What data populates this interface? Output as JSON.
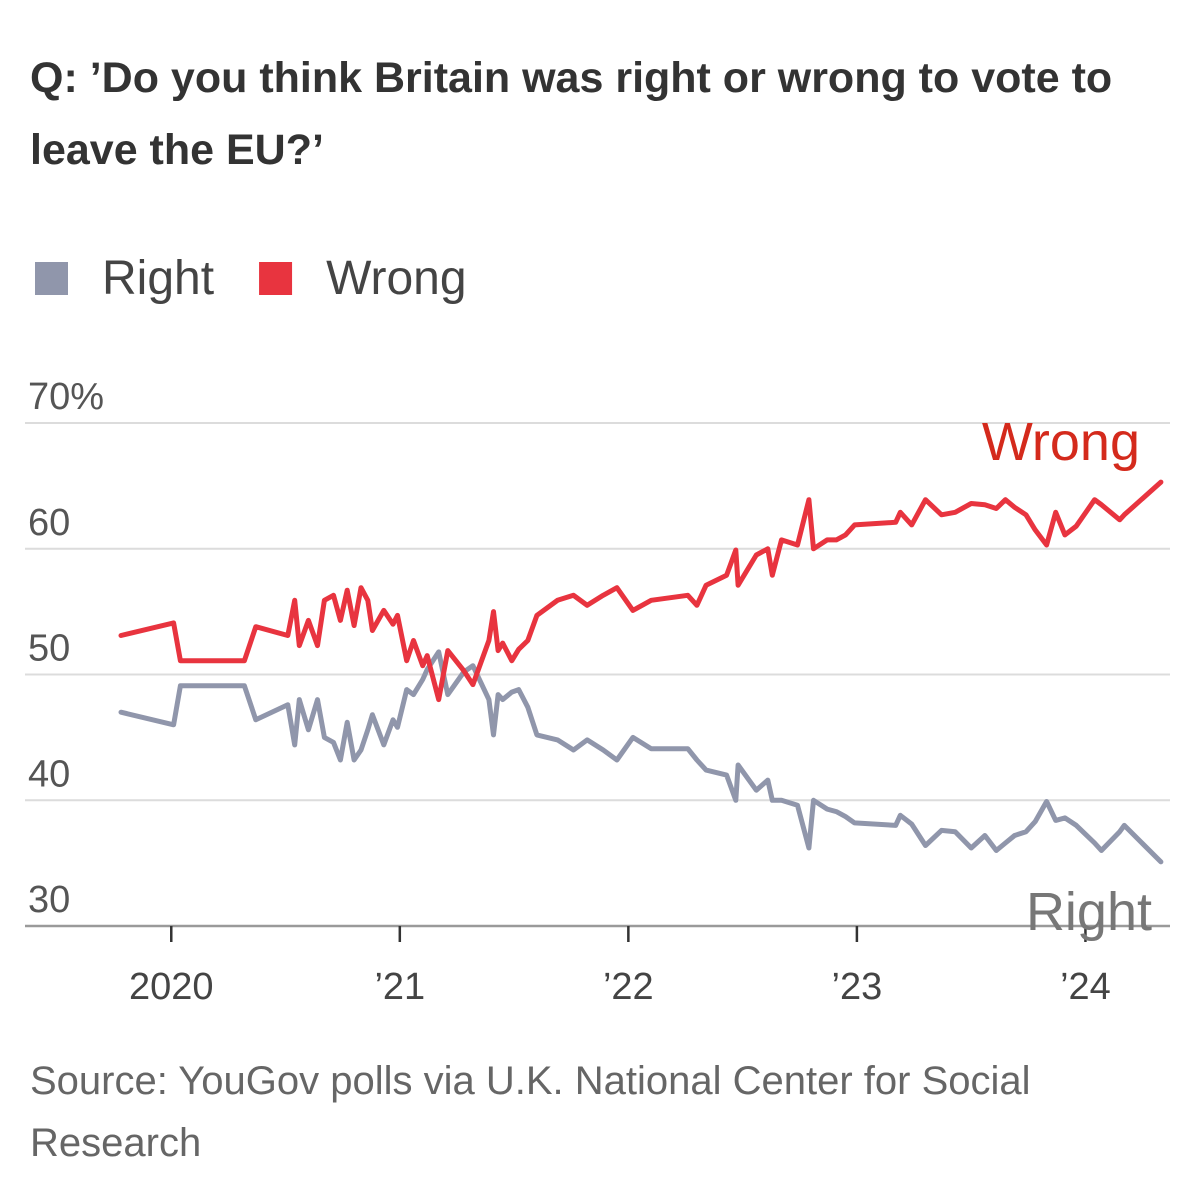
{
  "chart_data": {
    "type": "line",
    "title": "Q: ’Do you think Britain was right or wrong to vote to leave the EU?’",
    "source": "Source: YouGov polls via U.K. National Center for Social Research",
    "x": [
      2019.78,
      2020.01,
      2020.04,
      2020.32,
      2020.37,
      2020.51,
      2020.54,
      2020.56,
      2020.6,
      2020.64,
      2020.67,
      2020.71,
      2020.74,
      2020.77,
      2020.8,
      2020.83,
      2020.86,
      2020.88,
      2020.93,
      2020.97,
      2020.99,
      2021.03,
      2021.06,
      2021.1,
      2021.12,
      2021.17,
      2021.21,
      2021.28,
      2021.32,
      2021.39,
      2021.41,
      2021.43,
      2021.45,
      2021.49,
      2021.52,
      2021.56,
      2021.6,
      2021.69,
      2021.76,
      2021.82,
      2021.89,
      2021.95,
      2022.02,
      2022.1,
      2022.26,
      2022.3,
      2022.34,
      2022.43,
      2022.47,
      2022.48,
      2022.56,
      2022.61,
      2022.63,
      2022.67,
      2022.74,
      2022.79,
      2022.81,
      2022.87,
      2022.91,
      2022.95,
      2022.99,
      2023.17,
      2023.19,
      2023.24,
      2023.3,
      2023.37,
      2023.43,
      2023.5,
      2023.56,
      2023.61,
      2023.65,
      2023.69,
      2023.74,
      2023.78,
      2023.83,
      2023.87,
      2023.91,
      2023.96,
      2024.04,
      2024.07,
      2024.15,
      2024.17,
      2024.33
    ],
    "series": [
      {
        "name": "Right",
        "color": "#9096ab",
        "label": "Right",
        "label_color": "#777777",
        "values": [
          47.0,
          46.0,
          49.1,
          49.1,
          46.4,
          47.6,
          44.4,
          48.0,
          45.6,
          48.0,
          45.0,
          44.6,
          43.2,
          46.2,
          43.2,
          44.0,
          45.6,
          46.8,
          44.4,
          46.4,
          45.8,
          48.8,
          48.4,
          49.6,
          50.4,
          51.8,
          48.4,
          50.2,
          50.7,
          48.0,
          45.2,
          48.4,
          48.0,
          48.6,
          48.8,
          47.4,
          45.2,
          44.8,
          44.0,
          44.8,
          44.0,
          43.2,
          45.0,
          44.1,
          44.1,
          43.2,
          42.4,
          42.0,
          40.0,
          42.8,
          40.8,
          41.6,
          40.0,
          40.0,
          39.6,
          36.2,
          40.0,
          39.3,
          39.1,
          38.7,
          38.2,
          38.0,
          38.8,
          38.1,
          36.4,
          37.6,
          37.5,
          36.2,
          37.2,
          36.0,
          36.6,
          37.2,
          37.5,
          38.3,
          39.9,
          38.4,
          38.6,
          38.0,
          36.6,
          36.0,
          37.5,
          38.0,
          35.1
        ]
      },
      {
        "name": "Wrong",
        "color": "#e8343f",
        "label": "Wrong",
        "label_color": "#d42a1c",
        "values": [
          53.1,
          54.1,
          51.1,
          51.1,
          53.8,
          53.1,
          55.9,
          52.3,
          54.3,
          52.3,
          55.9,
          56.3,
          54.3,
          56.7,
          53.9,
          56.9,
          55.9,
          53.5,
          55.1,
          54.0,
          54.7,
          51.1,
          52.7,
          50.7,
          51.5,
          48.0,
          51.9,
          50.3,
          49.2,
          52.7,
          55.0,
          51.9,
          52.5,
          51.1,
          52.0,
          52.7,
          54.7,
          55.9,
          56.3,
          55.5,
          56.3,
          56.9,
          55.1,
          55.9,
          56.3,
          55.5,
          57.1,
          57.9,
          59.9,
          57.1,
          59.5,
          60.0,
          57.9,
          60.7,
          60.3,
          63.9,
          60.0,
          60.7,
          60.7,
          61.1,
          61.9,
          62.1,
          62.9,
          61.9,
          63.9,
          62.7,
          62.9,
          63.6,
          63.5,
          63.2,
          63.9,
          63.3,
          62.7,
          61.5,
          60.3,
          62.9,
          61.1,
          61.8,
          63.9,
          63.5,
          62.3,
          62.7,
          65.3
        ]
      }
    ],
    "xlim": [
      2019.36,
      2024.37
    ],
    "xticks": [
      {
        "value": 2020,
        "label": "2020"
      },
      {
        "value": 2021,
        "label": "’21"
      },
      {
        "value": 2022,
        "label": "’22"
      },
      {
        "value": 2023,
        "label": "’23"
      },
      {
        "value": 2024,
        "label": "’24"
      }
    ],
    "ylim": [
      30,
      70
    ],
    "yticks": [
      30,
      40,
      50,
      60,
      {
        "value": 70,
        "label": "70%"
      }
    ],
    "grid": true,
    "legend": "top-left"
  }
}
